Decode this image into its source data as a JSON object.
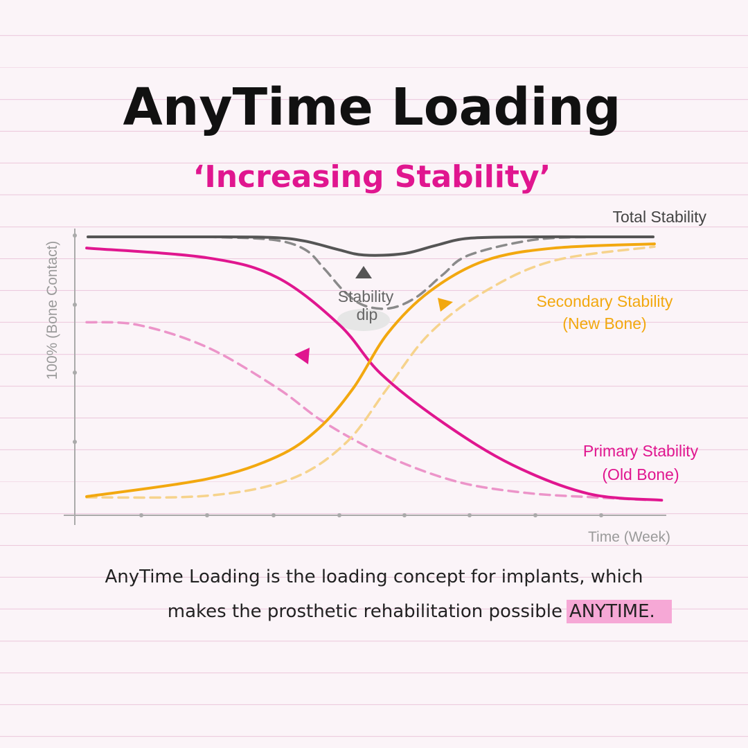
{
  "chart_data": {
    "type": "line",
    "title": "AnyTime Loading",
    "subtitle": "‘Increasing Stability’",
    "y_label": "100% (Bone Contact)",
    "x_label": "Time (Week)",
    "xlim": [
      0,
      9
    ],
    "ylim": [
      0,
      100
    ],
    "series": [
      {
        "name": "Total Stability",
        "color": "#555555",
        "dashed": false,
        "x": [
          0.2,
          1,
          2,
          3,
          3.5,
          4,
          4.4,
          5,
          5.5,
          6,
          7,
          8,
          8.8
        ],
        "values": [
          99.5,
          99.5,
          99.5,
          99.3,
          98,
          95,
          93,
          93.5,
          96.5,
          99,
          99.5,
          99.5,
          99.5
        ]
      },
      {
        "color": "#8a8a8a",
        "dashed": true,
        "x": [
          2,
          3,
          3.5,
          3.8,
          4.1,
          4.4,
          4.8,
          5.2,
          5.6,
          6,
          7,
          8
        ],
        "values": [
          99.5,
          98.5,
          95,
          88,
          80,
          75,
          74,
          78,
          86,
          93,
          98.5,
          99.5
        ]
      },
      {
        "name": "Primary Stability",
        "color": "#e0168f",
        "dashed": false,
        "x": [
          0.18,
          2.02,
          3.08,
          4.03,
          4.66,
          5.61,
          6.66,
          7.82,
          8.93
        ],
        "values": [
          95.5,
          92,
          85,
          68,
          50.5,
          33,
          18,
          7.7,
          5.4
        ]
      },
      {
        "color": "#ec94c9",
        "dashed": true,
        "x": [
          0.18,
          0.97,
          2.02,
          3.08,
          3.81,
          4.76,
          5.82,
          6.87,
          7.92,
          8.77
        ],
        "values": [
          69,
          68,
          60,
          45.5,
          33,
          21,
          12,
          8,
          6.4,
          5.4
        ]
      },
      {
        "name": "Secondary Stability",
        "color": "#f2a80f",
        "dashed": false,
        "x": [
          0.18,
          2.02,
          3.08,
          3.71,
          4.24,
          4.76,
          5.4,
          6.24,
          7.29,
          8.82
        ],
        "values": [
          6.7,
          13,
          21,
          31,
          45.5,
          65,
          80,
          91,
          95.5,
          97
        ]
      },
      {
        "color": "#f6d38c",
        "dashed": true,
        "x": [
          0.18,
          2.02,
          3.29,
          4.13,
          4.76,
          5.4,
          6.24,
          7.29,
          8.82
        ],
        "values": [
          6.4,
          7,
          13,
          26,
          45.5,
          65,
          80,
          91,
          96
        ]
      }
    ],
    "annotations": {
      "stability_dip": [
        "Stability",
        "dip"
      ],
      "secondary_note": "(New Bone)",
      "primary_note": "(Old Bone)"
    },
    "caption": {
      "line1": "AnyTime Loading is the loading concept for implants, which",
      "line2": "makes the prosthetic rehabilitation possible",
      "highlight": "ANYTIME."
    }
  }
}
